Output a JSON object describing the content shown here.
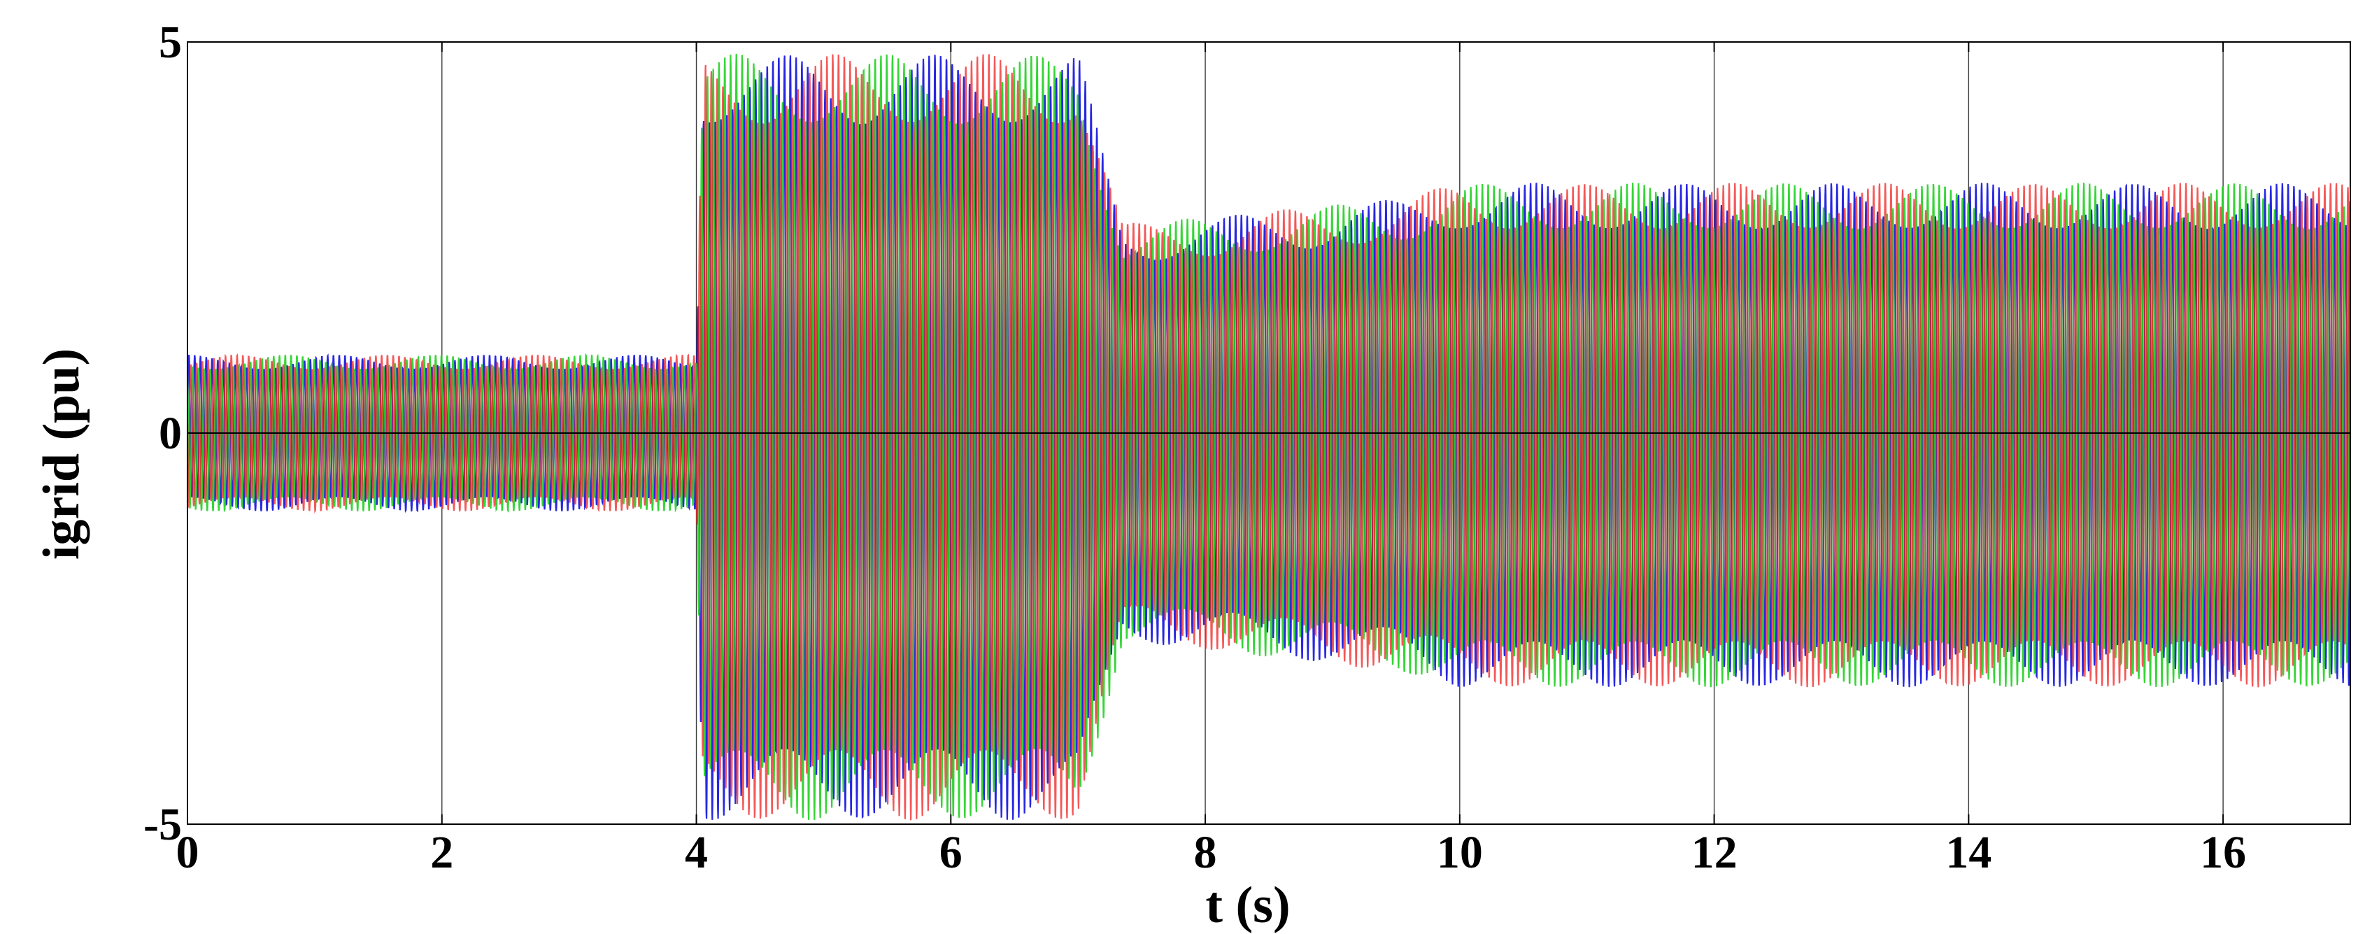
{
  "chart_data": {
    "type": "line",
    "title": "",
    "xlabel": "t (s)",
    "ylabel": "igrid (pu)",
    "xlim": [
      0,
      17
    ],
    "ylim": [
      -5,
      5
    ],
    "x_ticks": [
      0,
      2,
      4,
      6,
      8,
      10,
      12,
      14,
      16
    ],
    "x_tick_labels": [
      "0",
      "2",
      "4",
      "6",
      "8",
      "10",
      "12",
      "14",
      "16"
    ],
    "y_ticks": [
      -5,
      0,
      5
    ],
    "y_tick_labels": [
      "-5",
      "0",
      "5"
    ],
    "grid": true,
    "legend": "none",
    "series": [
      {
        "color": "#1010e0",
        "envelope_t": [
          0,
          0.08,
          4.0,
          4.05,
          7.0,
          7.35,
          7.6,
          9.5,
          10.0,
          17
        ],
        "envelope_max": [
          1.0,
          1.0,
          1.0,
          4.85,
          4.85,
          2.7,
          2.7,
          3.0,
          3.2,
          3.2
        ],
        "envelope_min": [
          -1.0,
          -1.0,
          -1.0,
          -4.95,
          -4.95,
          -2.7,
          -2.7,
          -3.05,
          -3.25,
          -3.25
        ]
      },
      {
        "color": "#20d020",
        "envelope_t": [
          0,
          0.08,
          4.0,
          4.05,
          7.0,
          7.35,
          7.6,
          9.5,
          10.0,
          17
        ],
        "envelope_max": [
          1.0,
          1.0,
          1.0,
          4.85,
          4.85,
          2.7,
          2.7,
          3.0,
          3.2,
          3.2
        ],
        "envelope_min": [
          -1.0,
          -1.0,
          -1.0,
          -4.95,
          -4.95,
          -2.7,
          -2.7,
          -3.05,
          -3.25,
          -3.25
        ]
      },
      {
        "color": "#f02020",
        "envelope_t": [
          0,
          0.08,
          4.0,
          4.05,
          7.0,
          7.35,
          7.6,
          9.5,
          10.0,
          17
        ],
        "envelope_max": [
          1.0,
          1.0,
          1.0,
          4.85,
          4.85,
          2.7,
          2.7,
          3.0,
          3.2,
          3.2
        ],
        "envelope_min": [
          -1.0,
          -1.0,
          -1.0,
          -4.95,
          -4.95,
          -2.7,
          -2.7,
          -3.05,
          -3.25,
          -3.25
        ]
      }
    ]
  }
}
